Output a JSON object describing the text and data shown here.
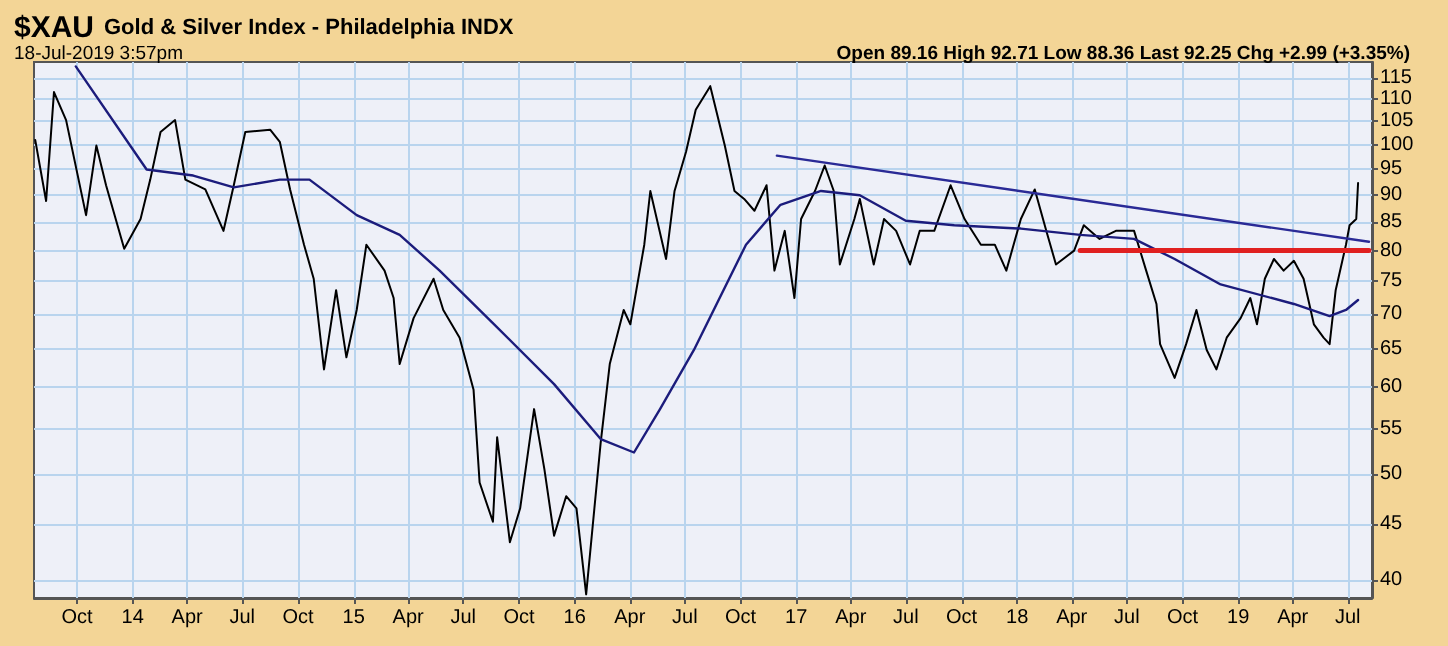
{
  "chart_data": {
    "type": "line",
    "title": "$XAU Gold & Silver Index - Philadelphia INDX",
    "subtitle": "18-Jul-2019 3:57pm",
    "annotations": [
      "Open 89.16 High 92.71 Low 88.36 Last 92.25 Chg +2.99 (+3.35%)"
    ],
    "log": "y",
    "grid": true,
    "xlim": [
      "2013-07-22",
      "2019-08-10"
    ],
    "xticks": [
      {
        "value": "2013-10-01",
        "label": "Oct"
      },
      {
        "value": "2014-01-01",
        "label": "14"
      },
      {
        "value": "2014-04-01",
        "label": "Apr"
      },
      {
        "value": "2014-07-01",
        "label": "Jul"
      },
      {
        "value": "2014-10-01",
        "label": "Oct"
      },
      {
        "value": "2015-01-01",
        "label": "15"
      },
      {
        "value": "2015-04-01",
        "label": "Apr"
      },
      {
        "value": "2015-07-01",
        "label": "Jul"
      },
      {
        "value": "2015-10-01",
        "label": "Oct"
      },
      {
        "value": "2016-01-01",
        "label": "16"
      },
      {
        "value": "2016-04-01",
        "label": "Apr"
      },
      {
        "value": "2016-07-01",
        "label": "Jul"
      },
      {
        "value": "2016-10-01",
        "label": "Oct"
      },
      {
        "value": "2017-01-01",
        "label": "17"
      },
      {
        "value": "2017-04-01",
        "label": "Apr"
      },
      {
        "value": "2017-07-01",
        "label": "Jul"
      },
      {
        "value": "2017-10-01",
        "label": "Oct"
      },
      {
        "value": "2018-01-01",
        "label": "18"
      },
      {
        "value": "2018-04-01",
        "label": "Apr"
      },
      {
        "value": "2018-07-01",
        "label": "Jul"
      },
      {
        "value": "2018-10-01",
        "label": "Oct"
      },
      {
        "value": "2019-01-01",
        "label": "19"
      },
      {
        "value": "2019-04-01",
        "label": "Apr"
      },
      {
        "value": "2019-07-01",
        "label": "Jul"
      }
    ],
    "ylim": [
      38.5,
      119
    ],
    "yticks": [
      40,
      45,
      50,
      55,
      60,
      65,
      70,
      75,
      80,
      85,
      90,
      95,
      100,
      105,
      110,
      115
    ],
    "series": [
      {
        "color": "#000000",
        "x": [
          "2013-07-24",
          "2013-08-11",
          "2013-08-24",
          "2013-09-13",
          "2013-10-16",
          "2013-11-02",
          "2013-11-18",
          "2013-12-18",
          "2014-01-14",
          "2014-01-30",
          "2014-02-16",
          "2014-03-12",
          "2014-03-29",
          "2014-05-01",
          "2014-05-31",
          "2014-06-17",
          "2014-07-06",
          "2014-08-16",
          "2014-09-01",
          "2014-09-18",
          "2014-10-11",
          "2014-10-27",
          "2014-11-13",
          "2014-12-03",
          "2014-12-20",
          "2015-01-06",
          "2015-01-22",
          "2015-02-21",
          "2015-03-08",
          "2015-03-18",
          "2015-04-10",
          "2015-05-13",
          "2015-05-29",
          "2015-06-25",
          "2015-07-18",
          "2015-07-28",
          "2015-08-19",
          "2015-08-26",
          "2015-09-16",
          "2015-10-03",
          "2015-10-26",
          "2015-11-12",
          "2015-11-28",
          "2015-12-18",
          "2016-01-04",
          "2016-01-20",
          "2016-02-13",
          "2016-02-28",
          "2016-03-22",
          "2016-04-02",
          "2016-04-25",
          "2016-05-05",
          "2016-05-31",
          "2016-06-14",
          "2016-07-03",
          "2016-07-19",
          "2016-08-12",
          "2016-09-05",
          "2016-09-21",
          "2016-10-07",
          "2016-10-24",
          "2016-11-13",
          "2016-11-26",
          "2016-12-13",
          "2016-12-29",
          "2017-01-09",
          "2017-02-01",
          "2017-02-17",
          "2017-03-04",
          "2017-03-14",
          "2017-04-07",
          "2017-04-16",
          "2017-05-09",
          "2017-05-26",
          "2017-06-15",
          "2017-07-08",
          "2017-07-24",
          "2017-08-17",
          "2017-09-13",
          "2017-10-06",
          "2017-11-02",
          "2017-11-25",
          "2017-12-14",
          "2018-01-07",
          "2018-01-30",
          "2018-02-18",
          "2018-03-06",
          "2018-04-05",
          "2018-04-21",
          "2018-05-17",
          "2018-06-13",
          "2018-07-13",
          "2018-08-02",
          "2018-08-19",
          "2018-08-25",
          "2018-09-18",
          "2018-10-07",
          "2018-10-24",
          "2018-11-10",
          "2018-11-26",
          "2018-12-13",
          "2019-01-05",
          "2019-01-21",
          "2019-02-01",
          "2019-02-14",
          "2019-03-01",
          "2019-03-17",
          "2019-04-03",
          "2019-04-19",
          "2019-05-06",
          "2019-05-22",
          "2019-06-01",
          "2019-06-11",
          "2019-06-28",
          "2019-07-04",
          "2019-07-15",
          "2019-07-18"
        ],
        "values": [
          101.0,
          88.8,
          111.7,
          105.3,
          86.2,
          99.8,
          91.8,
          80.3,
          85.5,
          92.9,
          102.7,
          105.3,
          92.9,
          91.0,
          83.4,
          91.8,
          102.7,
          103.2,
          100.6,
          91.0,
          81.0,
          75.4,
          62.3,
          73.6,
          63.9,
          70.6,
          81.0,
          76.7,
          72.4,
          63.0,
          69.4,
          75.4,
          70.6,
          66.6,
          59.7,
          49.1,
          45.2,
          54.0,
          43.3,
          46.5,
          57.3,
          50.5,
          43.9,
          47.7,
          46.5,
          38.8,
          53.4,
          63.0,
          70.6,
          68.5,
          81.0,
          90.7,
          78.6,
          90.7,
          98.5,
          107.6,
          113.1,
          99.8,
          90.7,
          89.2,
          87.0,
          91.8,
          76.7,
          83.4,
          72.4,
          85.5,
          90.7,
          95.7,
          90.7,
          77.7,
          85.5,
          89.2,
          77.7,
          85.5,
          83.4,
          77.7,
          83.4,
          83.4,
          91.8,
          85.5,
          81.0,
          81.0,
          76.7,
          85.5,
          91.0,
          83.4,
          77.7,
          80.0,
          84.4,
          82.0,
          83.4,
          83.4,
          76.7,
          71.5,
          65.7,
          61.2,
          65.7,
          70.6,
          64.9,
          62.3,
          66.6,
          69.4,
          72.4,
          68.5,
          75.4,
          78.6,
          76.7,
          78.3,
          75.4,
          68.5,
          66.6,
          65.7,
          73.6,
          81.0,
          84.4,
          85.5,
          92.25
        ]
      },
      {
        "color": "#1c1c7c",
        "x": [
          "2013-09-29",
          "2014-01-24",
          "2014-04-11",
          "2014-06-17",
          "2014-09-01",
          "2014-10-20",
          "2015-01-06",
          "2015-03-18",
          "2015-05-23",
          "2015-08-21",
          "2015-11-28",
          "2016-02-13",
          "2016-04-08",
          "2016-05-21",
          "2016-07-16",
          "2016-10-10",
          "2016-12-06",
          "2017-02-11",
          "2017-04-16",
          "2017-07-01",
          "2017-09-19",
          "2018-01-07",
          "2018-04-15",
          "2018-07-13",
          "2018-09-18",
          "2018-12-03",
          "2019-04-03",
          "2019-06-01",
          "2019-06-28",
          "2019-07-18"
        ],
        "values": [
          117.9,
          94.9,
          93.7,
          91.4,
          92.9,
          92.9,
          86.2,
          82.7,
          76.7,
          68.5,
          60.4,
          53.8,
          52.3,
          57.3,
          64.9,
          81.0,
          88.1,
          90.7,
          89.9,
          85.2,
          84.4,
          83.8,
          82.7,
          82.0,
          78.6,
          74.5,
          71.5,
          69.7,
          70.6,
          72.1
        ]
      },
      {
        "color": "#2a2a96",
        "x": [
          "2016-11-30",
          "2019-08-05"
        ],
        "values": [
          97.7,
          81.5
        ]
      },
      {
        "color": "#e02020",
        "x": [
          "2018-04-15",
          "2019-08-05"
        ],
        "values": [
          80,
          80
        ]
      }
    ]
  }
}
